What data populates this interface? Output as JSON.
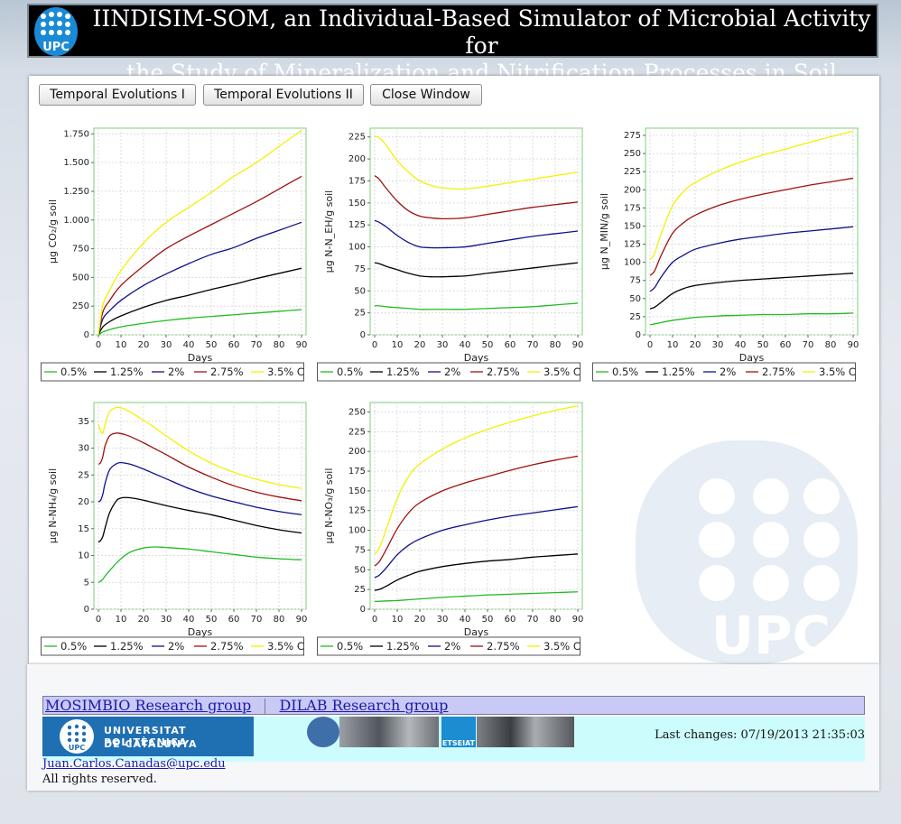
{
  "header": {
    "title_line1": "IINDISIM-SOM, an Individual-Based Simulator of Microbial Activity for",
    "title_line2": "the Study of Mineralization and Nitrification Processes in Soil",
    "logo_text": "UPC"
  },
  "toolbar": {
    "buttons": [
      "Temporal Evolutions I",
      "Temporal Evolutions II",
      "Close Window"
    ]
  },
  "legend_labels": [
    "0.5%",
    "1.25%",
    "2%",
    "2.75%",
    "3.5% C"
  ],
  "series_colors": [
    "#22bb22",
    "#000000",
    "#10108c",
    "#a01010",
    "#f2f200"
  ],
  "chart_data": [
    {
      "type": "line",
      "xlabel": "Days",
      "ylabel": "µg CO₂/g soil",
      "xlim": [
        0,
        90
      ],
      "ylim": [
        0,
        1800
      ],
      "yticks": [
        0,
        250,
        500,
        750,
        1000,
        1250,
        1500,
        1750
      ],
      "ytick_labels": [
        "0",
        "250",
        "500",
        "750",
        "1.000",
        "1.250",
        "1.500",
        "1.750"
      ],
      "x": [
        0,
        2,
        5,
        10,
        20,
        30,
        40,
        50,
        60,
        70,
        80,
        90
      ],
      "series": [
        {
          "name": "0.5%",
          "values": [
            0,
            25,
            45,
            70,
            100,
            125,
            145,
            160,
            175,
            190,
            205,
            220
          ]
        },
        {
          "name": "1.25%",
          "values": [
            0,
            70,
            115,
            165,
            240,
            300,
            345,
            395,
            440,
            490,
            535,
            580
          ]
        },
        {
          "name": "2%",
          "values": [
            0,
            140,
            210,
            300,
            430,
            530,
            620,
            700,
            760,
            840,
            910,
            980
          ]
        },
        {
          "name": "2.75%",
          "values": [
            0,
            200,
            300,
            430,
            600,
            750,
            860,
            960,
            1060,
            1160,
            1270,
            1380
          ]
        },
        {
          "name": "3.5% C",
          "values": [
            0,
            260,
            390,
            560,
            800,
            980,
            1110,
            1240,
            1380,
            1500,
            1640,
            1780
          ]
        }
      ]
    },
    {
      "type": "line",
      "xlabel": "Days",
      "ylabel": "µg N-N_EH/g soil",
      "xlim": [
        0,
        90
      ],
      "ylim": [
        0,
        235
      ],
      "yticks": [
        0,
        25,
        50,
        75,
        100,
        125,
        150,
        175,
        200,
        225
      ],
      "ytick_labels": [
        "0",
        "25",
        "50",
        "75",
        "100",
        "125",
        "150",
        "175",
        "200",
        "225"
      ],
      "x": [
        0,
        2,
        5,
        10,
        15,
        20,
        25,
        30,
        40,
        50,
        60,
        70,
        80,
        90
      ],
      "series": [
        {
          "name": "0.5%",
          "values": [
            33,
            33,
            32,
            31,
            30,
            29,
            29,
            29,
            29,
            30,
            31,
            32,
            34,
            36
          ]
        },
        {
          "name": "1.25%",
          "values": [
            82,
            81,
            78,
            74,
            70,
            67,
            66,
            66,
            67,
            70,
            73,
            76,
            79,
            82
          ]
        },
        {
          "name": "2%",
          "values": [
            130,
            128,
            123,
            113,
            105,
            100,
            99,
            99,
            100,
            104,
            108,
            112,
            115,
            118
          ]
        },
        {
          "name": "2.75%",
          "values": [
            181,
            177,
            167,
            152,
            141,
            135,
            133,
            132,
            133,
            137,
            141,
            145,
            148,
            151
          ]
        },
        {
          "name": "3.5% C",
          "values": [
            226,
            224,
            216,
            198,
            185,
            175,
            170,
            167,
            166,
            169,
            173,
            177,
            181,
            185
          ]
        }
      ]
    },
    {
      "type": "line",
      "xlabel": "Days",
      "ylabel": "µg N_MIN/g soil",
      "xlim": [
        0,
        90
      ],
      "ylim": [
        0,
        285
      ],
      "yticks": [
        0,
        25,
        50,
        75,
        100,
        125,
        150,
        175,
        200,
        225,
        250,
        275
      ],
      "ytick_labels": [
        "0",
        "25",
        "50",
        "75",
        "100",
        "125",
        "150",
        "175",
        "200",
        "225",
        "250",
        "275"
      ],
      "x": [
        0,
        2,
        5,
        10,
        15,
        20,
        30,
        40,
        50,
        60,
        70,
        80,
        90
      ],
      "series": [
        {
          "name": "0.5%",
          "values": [
            14,
            15,
            17,
            20,
            22,
            24,
            26,
            27,
            28,
            28,
            29,
            29,
            30
          ]
        },
        {
          "name": "1.25%",
          "values": [
            36,
            38,
            45,
            57,
            64,
            68,
            72,
            75,
            77,
            79,
            81,
            83,
            85
          ]
        },
        {
          "name": "2%",
          "values": [
            60,
            65,
            80,
            100,
            110,
            118,
            126,
            132,
            136,
            140,
            143,
            146,
            149
          ]
        },
        {
          "name": "2.75%",
          "values": [
            82,
            88,
            110,
            140,
            155,
            165,
            178,
            187,
            194,
            200,
            206,
            211,
            216
          ]
        },
        {
          "name": "3.5% C",
          "values": [
            104,
            112,
            140,
            178,
            198,
            210,
            226,
            238,
            248,
            256,
            265,
            273,
            281
          ]
        }
      ]
    },
    {
      "type": "line",
      "xlabel": "Days",
      "ylabel": "µg N-NH₄/g soil",
      "xlim": [
        0,
        90
      ],
      "ylim": [
        0,
        38.5
      ],
      "yticks": [
        0,
        5,
        10,
        15,
        20,
        25,
        30,
        35
      ],
      "ytick_labels": [
        "0",
        "5",
        "10",
        "15",
        "20",
        "25",
        "30",
        "35"
      ],
      "x": [
        0,
        1,
        2,
        3,
        5,
        8,
        10,
        12,
        15,
        20,
        25,
        30,
        40,
        50,
        60,
        70,
        80,
        90
      ],
      "series": [
        {
          "name": "0.5%",
          "values": [
            5,
            5.2,
            5.6,
            6.2,
            7.2,
            8.6,
            9.4,
            10.1,
            10.8,
            11.4,
            11.6,
            11.5,
            11.2,
            10.7,
            10.2,
            9.7,
            9.4,
            9.2
          ]
        },
        {
          "name": "1.25%",
          "values": [
            12.5,
            12.8,
            13.6,
            15.2,
            18.0,
            20.2,
            20.7,
            20.8,
            20.7,
            20.3,
            19.8,
            19.3,
            18.4,
            17.6,
            16.6,
            15.6,
            14.8,
            14.2
          ]
        },
        {
          "name": "2%",
          "values": [
            20,
            20.3,
            21.5,
            23.5,
            26.0,
            27.1,
            27.3,
            27.2,
            26.9,
            26.1,
            25.2,
            24.3,
            22.5,
            21.1,
            20.0,
            19.0,
            18.2,
            17.6
          ]
        },
        {
          "name": "2.75%",
          "values": [
            27,
            27.3,
            28.5,
            30.5,
            32.3,
            32.8,
            32.7,
            32.5,
            32.0,
            31.0,
            29.9,
            28.8,
            26.5,
            24.6,
            23.0,
            21.8,
            20.9,
            20.2
          ]
        },
        {
          "name": "3.5% C",
          "values": [
            34.5,
            33.2,
            32.8,
            34.5,
            36.8,
            37.6,
            37.5,
            37.2,
            36.5,
            35.2,
            33.8,
            32.3,
            29.5,
            27.2,
            25.5,
            24.2,
            23.2,
            22.5
          ]
        }
      ]
    },
    {
      "type": "line",
      "xlabel": "Days",
      "ylabel": "µg N-NO₃/g soil",
      "xlim": [
        0,
        90
      ],
      "ylim": [
        0,
        262
      ],
      "yticks": [
        0,
        25,
        50,
        75,
        100,
        125,
        150,
        175,
        200,
        225,
        250
      ],
      "ytick_labels": [
        "0",
        "25",
        "50",
        "75",
        "100",
        "125",
        "150",
        "175",
        "200",
        "225",
        "250"
      ],
      "x": [
        0,
        2,
        5,
        10,
        15,
        20,
        30,
        40,
        50,
        60,
        70,
        80,
        90
      ],
      "series": [
        {
          "name": "0.5%",
          "values": [
            10,
            10,
            10.5,
            11,
            12,
            13,
            15,
            16.5,
            18,
            19,
            20,
            21,
            22
          ]
        },
        {
          "name": "1.25%",
          "values": [
            24,
            25,
            29,
            37,
            43,
            48,
            54,
            58,
            61,
            63,
            66,
            68,
            70
          ]
        },
        {
          "name": "2%",
          "values": [
            40,
            43,
            52,
            69,
            81,
            89,
            100,
            107,
            113,
            118,
            122,
            126,
            130
          ]
        },
        {
          "name": "2.75%",
          "values": [
            55,
            60,
            75,
            102,
            122,
            135,
            150,
            160,
            168,
            176,
            183,
            189,
            194
          ]
        },
        {
          "name": "3.5% C",
          "values": [
            70,
            77,
            100,
            140,
            168,
            184,
            203,
            217,
            228,
            237,
            245,
            252,
            258
          ]
        }
      ]
    }
  ],
  "footer": {
    "link1": "MOSIMBIO Research group",
    "link2": "DILAB Research group",
    "upc_banner_line1": "UNIVERSITAT POLITÈCNICA",
    "upc_banner_line2": "DE CATALUNYA",
    "upc_banner_logo": "UPC",
    "etseiat_label": "ETSEIAT",
    "last_changes": "Last changes: 07/19/2013 21:35:03",
    "email": "Juan.Carlos.Canadas@upc.edu",
    "rights": "All rights reserved."
  }
}
